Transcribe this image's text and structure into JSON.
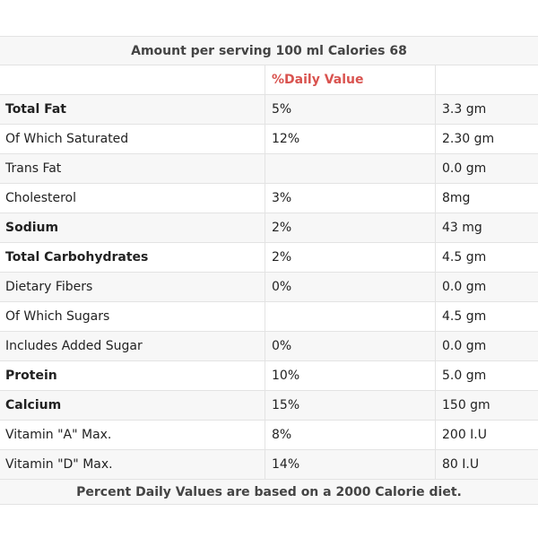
{
  "title": "Amount per serving 100 ml Calories 68",
  "header": {
    "name": "",
    "dv": "%Daily Value",
    "amount": ""
  },
  "rows": [
    {
      "name": "Total Fat",
      "dv": "5%",
      "amount": "3.3 gm",
      "bold": true
    },
    {
      "name": "Of Which Saturated",
      "dv": "12%",
      "amount": "2.30 gm",
      "bold": false
    },
    {
      "name": "Trans Fat",
      "dv": "",
      "amount": "0.0 gm",
      "bold": false
    },
    {
      "name": "Cholesterol",
      "dv": "3%",
      "amount": "8mg",
      "bold": false
    },
    {
      "name": "Sodium",
      "dv": "2%",
      "amount": "43 mg",
      "bold": true
    },
    {
      "name": "Total Carbohydrates",
      "dv": "2%",
      "amount": "4.5 gm",
      "bold": true
    },
    {
      "name": "Dietary Fibers",
      "dv": "0%",
      "amount": "0.0 gm",
      "bold": false
    },
    {
      "name": "Of Which Sugars",
      "dv": "",
      "amount": "4.5 gm",
      "bold": false
    },
    {
      "name": "Includes Added Sugar",
      "dv": "0%",
      "amount": "0.0 gm",
      "bold": false
    },
    {
      "name": "Protein",
      "dv": "10%",
      "amount": "5.0 gm",
      "bold": true
    },
    {
      "name": "Calcium",
      "dv": "15%",
      "amount": "150 gm",
      "bold": true
    },
    {
      "name": "Vitamin \"A\" Max.",
      "dv": "8%",
      "amount": "200 I.U",
      "bold": false
    },
    {
      "name": "Vitamin \"D\" Max.",
      "dv": "14%",
      "amount": "80 I.U",
      "bold": false
    }
  ],
  "footer": "Percent Daily Values are based on a 2000 Calorie diet.",
  "colors": {
    "dv_header": "#d9534f",
    "stripe": "#f7f7f7",
    "border": "#e3e3e3"
  }
}
